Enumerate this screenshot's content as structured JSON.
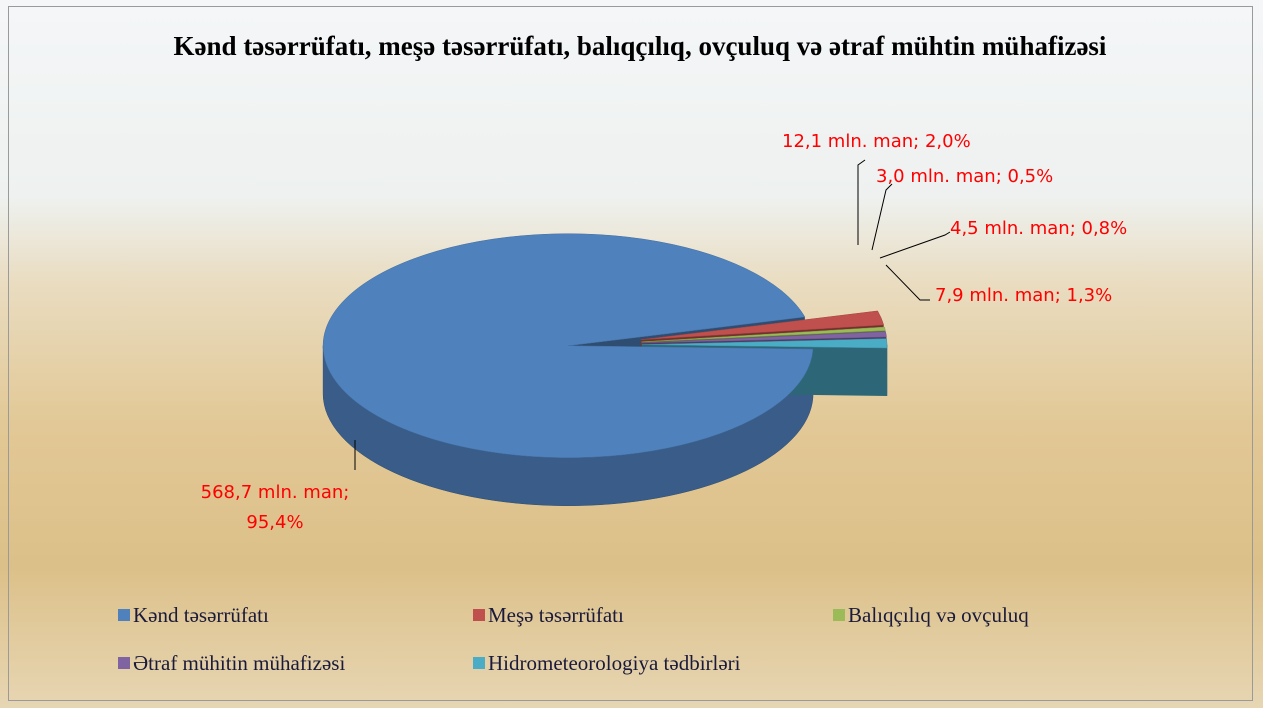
{
  "chart_data": {
    "type": "pie",
    "title": "Kənd təsərrüfatı, meşə təsərrüfatı, balıqçılıq, ovçuluq və ətraf mühtin mühafizəsi",
    "categories": [
      "Kənd təsərrüfatı",
      "Meşə təsərrüfatı",
      "Balıqçılıq və ovçuluq",
      "Ətraf mühitin mühafizəsi",
      "Hidrometeorologiya tədbirləri"
    ],
    "values": [
      568.7,
      12.1,
      3.0,
      4.5,
      7.9
    ],
    "value_labels": [
      "568,7 mln. man; 95,4%",
      "12,1 mln. man; 2,0%",
      "3,0 mln. man; 0,5%",
      "4,5 mln. man; 0,8%",
      "7,9 mln. man; 1,3%"
    ],
    "colors": [
      "#4f81bd",
      "#c0504d",
      "#9bbb59",
      "#8064a2",
      "#4bacc6"
    ],
    "legend": "bottom"
  }
}
